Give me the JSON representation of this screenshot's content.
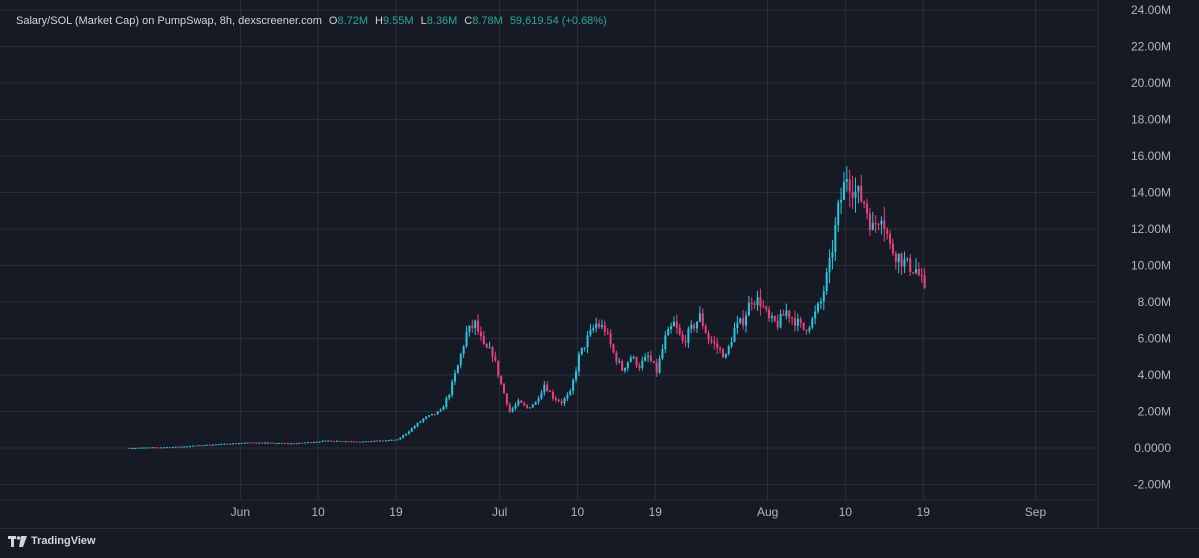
{
  "header": {
    "symbol": "Salary/SOL (Market Cap) on PumpSwap, 8h, dexscreener.com",
    "open_label": "O",
    "open": "8.72M",
    "high_label": "H",
    "high": "9.55M",
    "low_label": "L",
    "low": "8.36M",
    "close_label": "C",
    "close": "8.78M",
    "change": "59,619.54 (+0.68%)"
  },
  "footer": {
    "brand": "TradingView"
  },
  "colors": {
    "background": "#161a25",
    "grid": "#2a2e39",
    "up": "#26c6da",
    "down": "#ec407a",
    "text": "#d1d4dc",
    "value": "#22ab94"
  },
  "chart_data": {
    "type": "candlestick",
    "interval": "8h",
    "y_axis": {
      "min": -2.6,
      "max": 24.0,
      "unit": "M",
      "ticks": [
        24,
        22,
        20,
        18,
        16,
        14,
        12,
        10,
        8,
        6,
        4,
        2,
        0,
        -2
      ],
      "tick_labels": [
        "24.00M",
        "22.00M",
        "20.00M",
        "18.00M",
        "16.00M",
        "14.00M",
        "12.00M",
        "10.00M",
        "8.00M",
        "6.00M",
        "4.00M",
        "2.00M",
        "0.0000",
        "-2.00M"
      ]
    },
    "x_axis": {
      "start": "2025-05-19",
      "end": "2025-09-11",
      "ticks": [
        "2025-06-01",
        "2025-06-10",
        "2025-06-19",
        "2025-07-01",
        "2025-07-10",
        "2025-07-19",
        "2025-08-01",
        "2025-08-10",
        "2025-08-19",
        "2025-09-01"
      ],
      "tick_labels": [
        "Jun",
        "10",
        "19",
        "Jul",
        "10",
        "19",
        "Aug",
        "10",
        "19",
        "Sep"
      ]
    },
    "grid": true,
    "price_path": [
      [
        "2025-05-19",
        0.0
      ],
      [
        "2025-05-24",
        0.05
      ],
      [
        "2025-05-29",
        0.2
      ],
      [
        "2025-06-02",
        0.3
      ],
      [
        "2025-06-07",
        0.25
      ],
      [
        "2025-06-11",
        0.4
      ],
      [
        "2025-06-15",
        0.35
      ],
      [
        "2025-06-19",
        0.45
      ],
      [
        "2025-06-20",
        0.8
      ],
      [
        "2025-06-22",
        1.6
      ],
      [
        "2025-06-24",
        2.0
      ],
      [
        "2025-06-25",
        3.0
      ],
      [
        "2025-06-26",
        4.5
      ],
      [
        "2025-06-27",
        6.3
      ],
      [
        "2025-06-28",
        6.8
      ],
      [
        "2025-06-29",
        5.5
      ],
      [
        "2025-06-30",
        5.2
      ],
      [
        "2025-07-01",
        3.5
      ],
      [
        "2025-07-02",
        2.0
      ],
      [
        "2025-07-03",
        2.5
      ],
      [
        "2025-07-04",
        2.2
      ],
      [
        "2025-07-05",
        2.5
      ],
      [
        "2025-07-06",
        3.5
      ],
      [
        "2025-07-07",
        2.8
      ],
      [
        "2025-07-08",
        2.5
      ],
      [
        "2025-07-09",
        3.0
      ],
      [
        "2025-07-10",
        5.0
      ],
      [
        "2025-07-11",
        6.0
      ],
      [
        "2025-07-12",
        6.8
      ],
      [
        "2025-07-13",
        6.5
      ],
      [
        "2025-07-14",
        5.2
      ],
      [
        "2025-07-15",
        4.3
      ],
      [
        "2025-07-16",
        5.0
      ],
      [
        "2025-07-17",
        4.5
      ],
      [
        "2025-07-18",
        5.0
      ],
      [
        "2025-07-19",
        4.2
      ],
      [
        "2025-07-20",
        6.0
      ],
      [
        "2025-07-21",
        6.8
      ],
      [
        "2025-07-22",
        5.8
      ],
      [
        "2025-07-23",
        6.5
      ],
      [
        "2025-07-24",
        7.2
      ],
      [
        "2025-07-25",
        6.0
      ],
      [
        "2025-07-26",
        5.5
      ],
      [
        "2025-07-27",
        5.0
      ],
      [
        "2025-07-28",
        6.5
      ],
      [
        "2025-07-29",
        7.0
      ],
      [
        "2025-07-30",
        8.2
      ],
      [
        "2025-07-31",
        8.0
      ],
      [
        "2025-08-01",
        7.0
      ],
      [
        "2025-08-02",
        6.8
      ],
      [
        "2025-08-03",
        7.5
      ],
      [
        "2025-08-04",
        7.0
      ],
      [
        "2025-08-05",
        6.5
      ],
      [
        "2025-08-06",
        7.0
      ],
      [
        "2025-08-07",
        8.0
      ],
      [
        "2025-08-08",
        10.0
      ],
      [
        "2025-08-09",
        13.0
      ],
      [
        "2025-08-10",
        15.0
      ],
      [
        "2025-08-11",
        14.0
      ],
      [
        "2025-08-12",
        13.5
      ],
      [
        "2025-08-13",
        12.0
      ],
      [
        "2025-08-14",
        13.0
      ],
      [
        "2025-08-15",
        11.0
      ],
      [
        "2025-08-16",
        10.5
      ],
      [
        "2025-08-17",
        10.0
      ],
      [
        "2025-08-18",
        9.8
      ],
      [
        "2025-08-19",
        8.78
      ]
    ]
  }
}
